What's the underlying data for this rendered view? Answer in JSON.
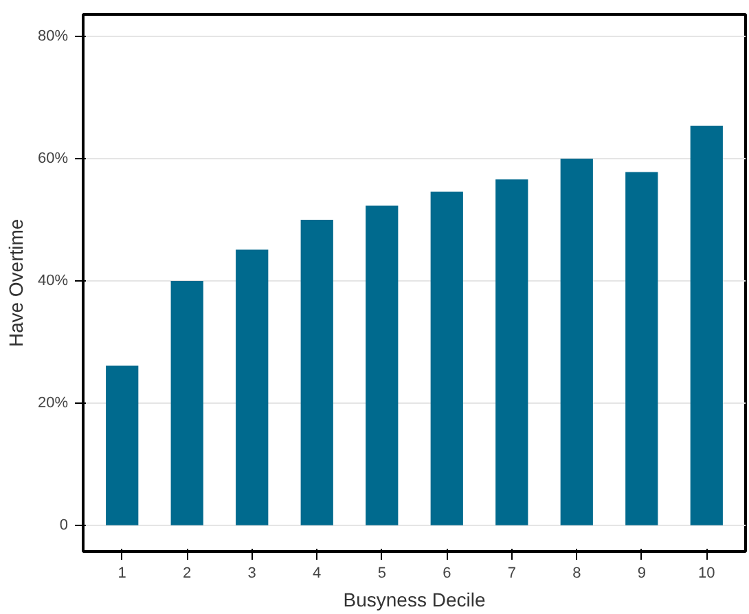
{
  "chart_data": {
    "type": "bar",
    "xlabel": "Busyness Decile",
    "ylabel": "Have Overtime",
    "categories": [
      "1",
      "2",
      "3",
      "4",
      "5",
      "6",
      "7",
      "8",
      "9",
      "10"
    ],
    "values": [
      26.1,
      40.0,
      45.1,
      50.0,
      52.3,
      54.6,
      56.6,
      60.0,
      57.8,
      65.4
    ],
    "color": "#006a8e",
    "ylim": [
      -4.3,
      83.6
    ],
    "yticks": [
      {
        "value": 0,
        "label": "0"
      },
      {
        "value": 20,
        "label": "20%"
      },
      {
        "value": 40,
        "label": "40%"
      },
      {
        "value": 60,
        "label": "60%"
      },
      {
        "value": 80,
        "label": "80%"
      }
    ],
    "grid": "y"
  }
}
